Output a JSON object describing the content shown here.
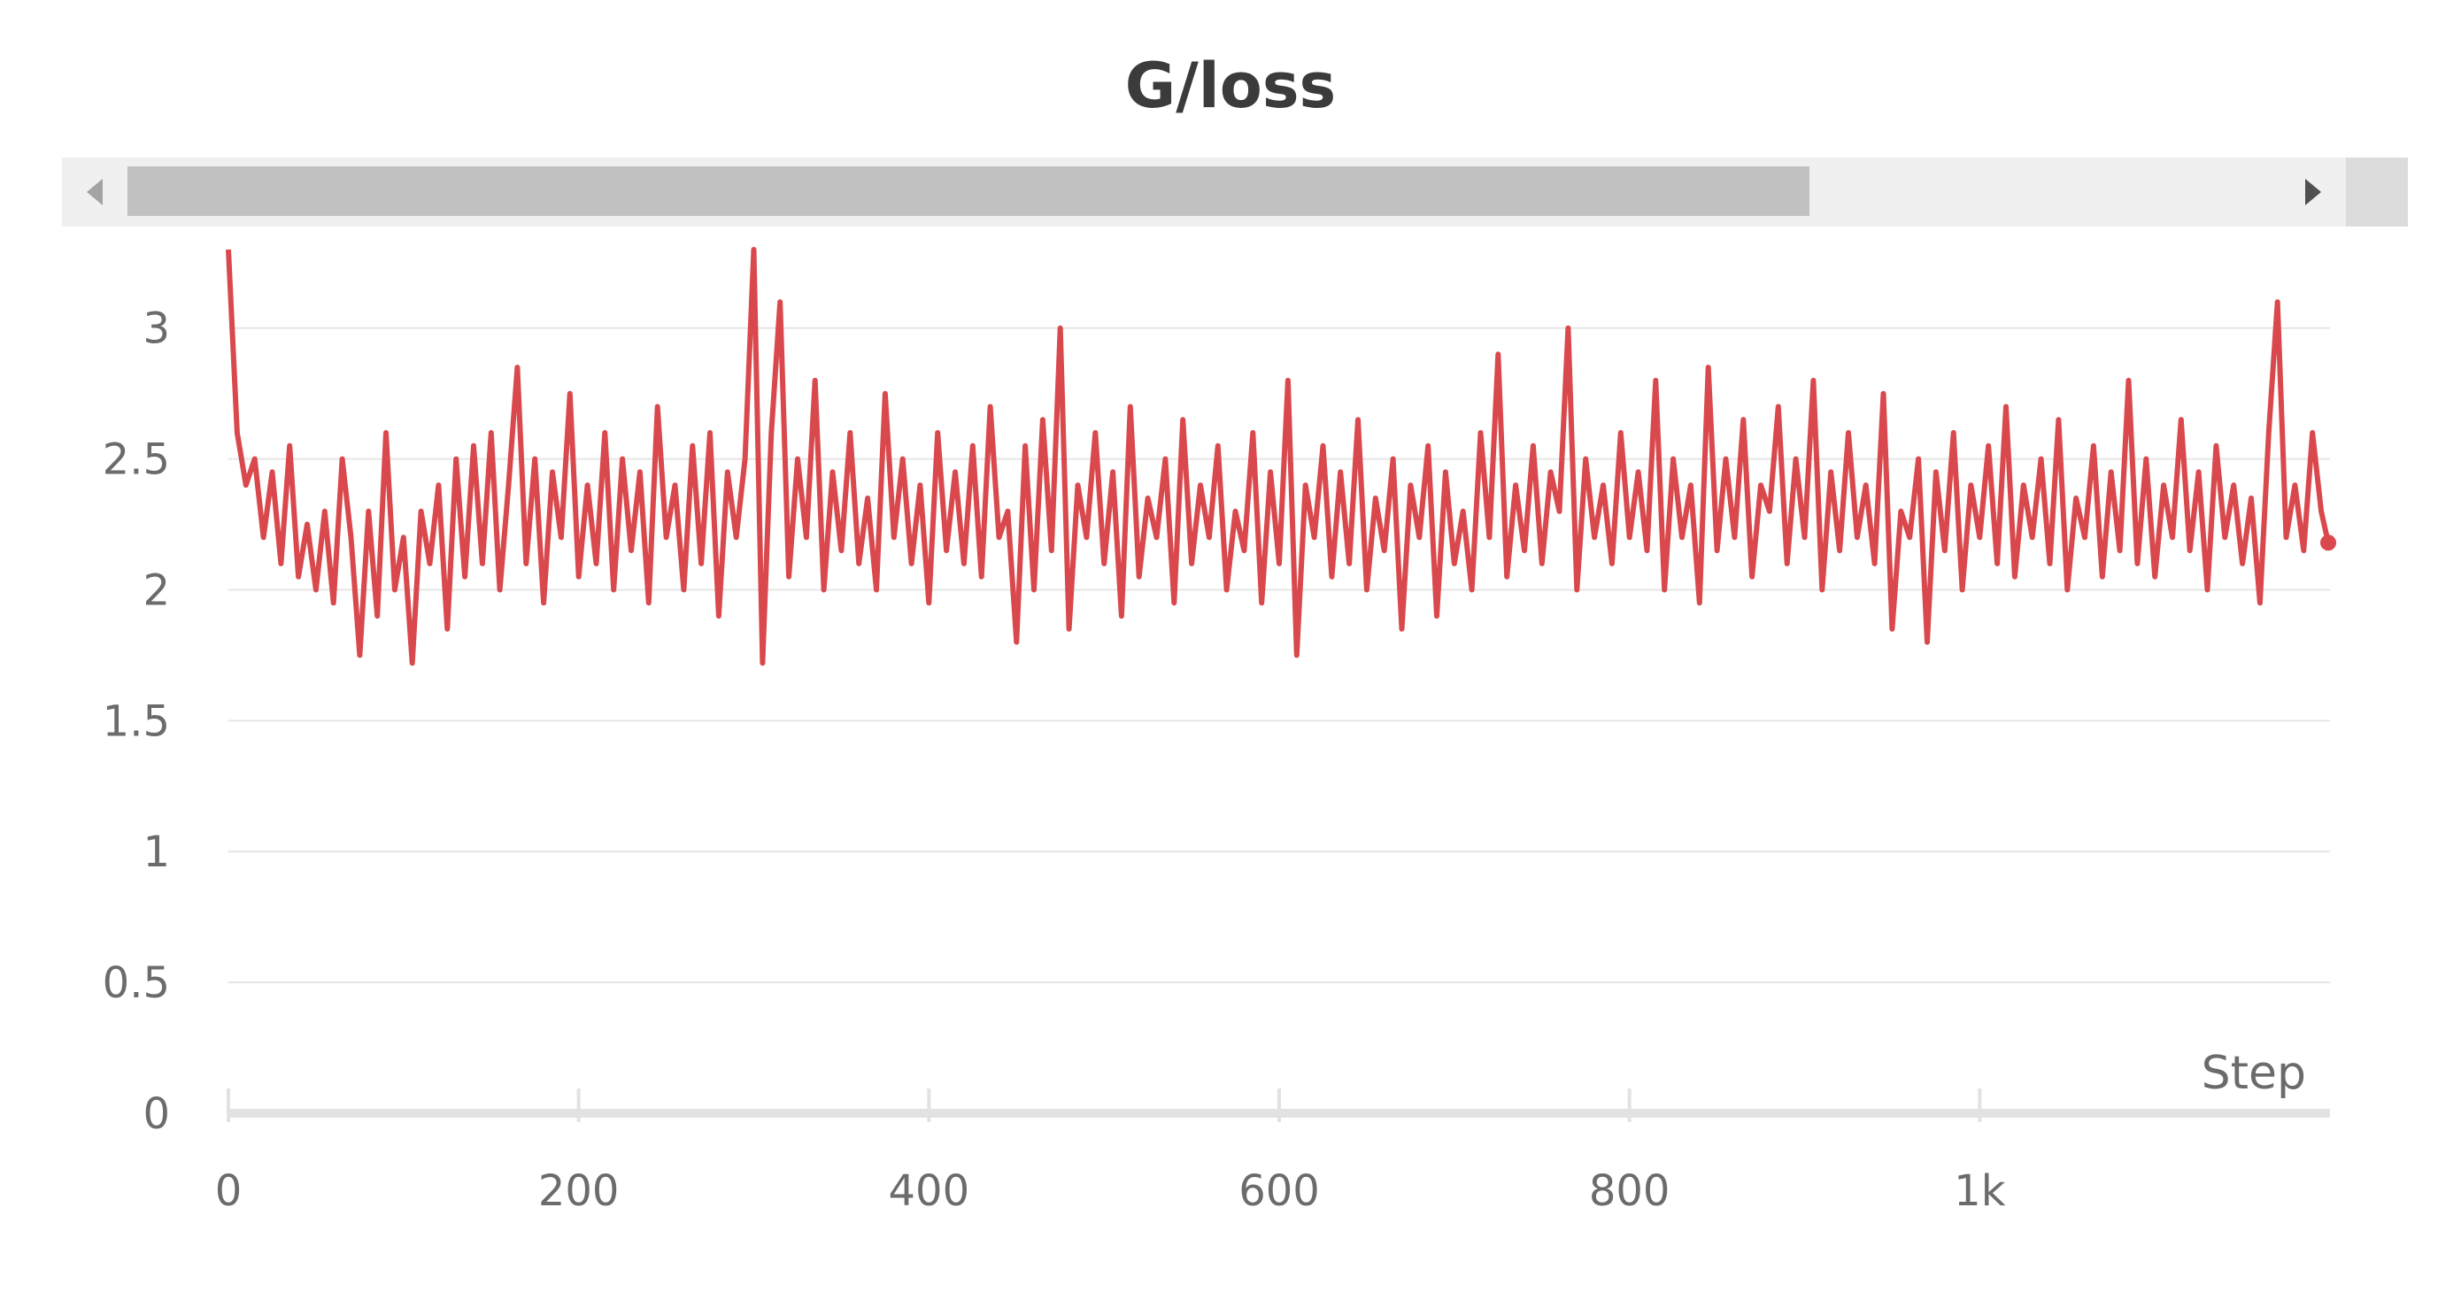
{
  "chart_data": {
    "type": "line",
    "title": "G/loss",
    "xlabel": "Step",
    "ylabel": "",
    "xlim": [
      0,
      1200
    ],
    "ylim": [
      0,
      3.3
    ],
    "x_ticks": [
      {
        "v": 0,
        "label": "0"
      },
      {
        "v": 200,
        "label": "200"
      },
      {
        "v": 400,
        "label": "400"
      },
      {
        "v": 600,
        "label": "600"
      },
      {
        "v": 800,
        "label": "800"
      },
      {
        "v": 1000,
        "label": "1k"
      }
    ],
    "y_ticks": [
      {
        "v": 0,
        "label": "0"
      },
      {
        "v": 0.5,
        "label": "0.5"
      },
      {
        "v": 1,
        "label": "1"
      },
      {
        "v": 1.5,
        "label": "1.5"
      },
      {
        "v": 2,
        "label": "2"
      },
      {
        "v": 2.5,
        "label": "2.5"
      },
      {
        "v": 3,
        "label": "3"
      }
    ],
    "grid": true,
    "series": [
      {
        "color": "#d9484c",
        "x": [
          0,
          5,
          10,
          15,
          20,
          25,
          30,
          35,
          40,
          45,
          50,
          55,
          60,
          65,
          70,
          75,
          80,
          85,
          90,
          95,
          100,
          105,
          110,
          115,
          120,
          125,
          130,
          135,
          140,
          145,
          150,
          155,
          160,
          165,
          170,
          175,
          180,
          185,
          190,
          195,
          200,
          205,
          210,
          215,
          220,
          225,
          230,
          235,
          240,
          245,
          250,
          255,
          260,
          265,
          270,
          275,
          280,
          285,
          290,
          295,
          300,
          305,
          310,
          315,
          320,
          325,
          330,
          335,
          340,
          345,
          350,
          355,
          360,
          365,
          370,
          375,
          380,
          385,
          390,
          395,
          400,
          405,
          410,
          415,
          420,
          425,
          430,
          435,
          440,
          445,
          450,
          455,
          460,
          465,
          470,
          475,
          480,
          485,
          490,
          495,
          500,
          505,
          510,
          515,
          520,
          525,
          530,
          535,
          540,
          545,
          550,
          555,
          560,
          565,
          570,
          575,
          580,
          585,
          590,
          595,
          600,
          605,
          610,
          615,
          620,
          625,
          630,
          635,
          640,
          645,
          650,
          655,
          660,
          665,
          670,
          675,
          680,
          685,
          690,
          695,
          700,
          705,
          710,
          715,
          720,
          725,
          730,
          735,
          740,
          745,
          750,
          755,
          760,
          765,
          770,
          775,
          780,
          785,
          790,
          795,
          800,
          805,
          810,
          815,
          820,
          825,
          830,
          835,
          840,
          845,
          850,
          855,
          860,
          865,
          870,
          875,
          880,
          885,
          890,
          895,
          900,
          905,
          910,
          915,
          920,
          925,
          930,
          935,
          940,
          945,
          950,
          955,
          960,
          965,
          970,
          975,
          980,
          985,
          990,
          995,
          1000,
          1005,
          1010,
          1015,
          1020,
          1025,
          1030,
          1035,
          1040,
          1045,
          1050,
          1055,
          1060,
          1065,
          1070,
          1075,
          1080,
          1085,
          1090,
          1095,
          1100,
          1105,
          1110,
          1115,
          1120,
          1125,
          1130,
          1135,
          1140,
          1145,
          1150,
          1155,
          1160,
          1165,
          1170,
          1175,
          1180,
          1185,
          1190,
          1195,
          1199
        ],
        "y": [
          3.3,
          2.6,
          2.4,
          2.5,
          2.2,
          2.45,
          2.1,
          2.55,
          2.05,
          2.25,
          2.0,
          2.3,
          1.95,
          2.5,
          2.2,
          1.75,
          2.3,
          1.9,
          2.6,
          2.0,
          2.2,
          1.72,
          2.3,
          2.1,
          2.4,
          1.85,
          2.5,
          2.05,
          2.55,
          2.1,
          2.6,
          2.0,
          2.4,
          2.85,
          2.1,
          2.5,
          1.95,
          2.45,
          2.2,
          2.75,
          2.05,
          2.4,
          2.1,
          2.6,
          2.0,
          2.5,
          2.15,
          2.45,
          1.95,
          2.7,
          2.2,
          2.4,
          2.0,
          2.55,
          2.1,
          2.6,
          1.9,
          2.45,
          2.2,
          2.5,
          3.3,
          1.72,
          2.6,
          3.1,
          2.05,
          2.5,
          2.2,
          2.8,
          2.0,
          2.45,
          2.15,
          2.6,
          2.1,
          2.35,
          2.0,
          2.75,
          2.2,
          2.5,
          2.1,
          2.4,
          1.95,
          2.6,
          2.15,
          2.45,
          2.1,
          2.55,
          2.05,
          2.7,
          2.2,
          2.3,
          1.8,
          2.55,
          2.0,
          2.65,
          2.15,
          3.0,
          1.85,
          2.4,
          2.2,
          2.6,
          2.1,
          2.45,
          1.9,
          2.7,
          2.05,
          2.35,
          2.2,
          2.5,
          1.95,
          2.65,
          2.1,
          2.4,
          2.2,
          2.55,
          2.0,
          2.3,
          2.15,
          2.6,
          1.95,
          2.45,
          2.1,
          2.8,
          1.75,
          2.4,
          2.2,
          2.55,
          2.05,
          2.45,
          2.1,
          2.65,
          2.0,
          2.35,
          2.15,
          2.5,
          1.85,
          2.4,
          2.2,
          2.55,
          1.9,
          2.45,
          2.1,
          2.3,
          2.0,
          2.6,
          2.2,
          2.9,
          2.05,
          2.4,
          2.15,
          2.55,
          2.1,
          2.45,
          2.3,
          3.0,
          2.0,
          2.5,
          2.2,
          2.4,
          2.1,
          2.6,
          2.2,
          2.45,
          2.15,
          2.8,
          2.0,
          2.5,
          2.2,
          2.4,
          1.95,
          2.85,
          2.15,
          2.5,
          2.2,
          2.65,
          2.05,
          2.4,
          2.3,
          2.7,
          2.1,
          2.5,
          2.2,
          2.8,
          2.0,
          2.45,
          2.15,
          2.6,
          2.2,
          2.4,
          2.1,
          2.75,
          1.85,
          2.3,
          2.2,
          2.5,
          1.8,
          2.45,
          2.15,
          2.6,
          2.0,
          2.4,
          2.2,
          2.55,
          2.1,
          2.7,
          2.05,
          2.4,
          2.2,
          2.5,
          2.1,
          2.65,
          2.0,
          2.35,
          2.2,
          2.55,
          2.05,
          2.45,
          2.15,
          2.8,
          2.1,
          2.5,
          2.05,
          2.4,
          2.2,
          2.65,
          2.15,
          2.45,
          2.0,
          2.55,
          2.2,
          2.4,
          2.1,
          2.35,
          1.95,
          2.6,
          3.1,
          2.2,
          2.4,
          2.15,
          2.6,
          2.3,
          2.18
        ]
      }
    ]
  }
}
